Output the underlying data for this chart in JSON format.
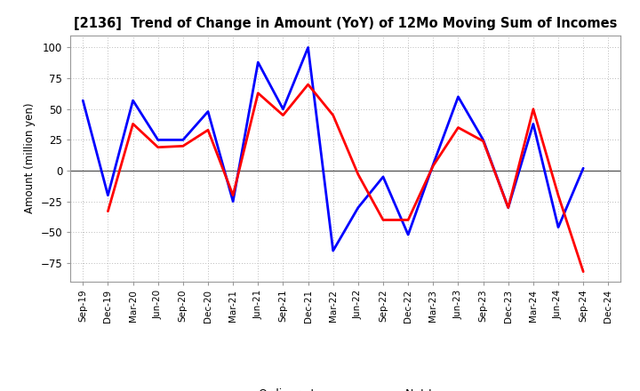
{
  "title": "[2136]  Trend of Change in Amount (YoY) of 12Mo Moving Sum of Incomes",
  "ylabel": "Amount (million yen)",
  "x_labels": [
    "Sep-19",
    "Dec-19",
    "Mar-20",
    "Jun-20",
    "Sep-20",
    "Dec-20",
    "Mar-21",
    "Jun-21",
    "Sep-21",
    "Dec-21",
    "Mar-22",
    "Jun-22",
    "Sep-22",
    "Dec-22",
    "Mar-23",
    "Jun-23",
    "Sep-23",
    "Dec-23",
    "Mar-24",
    "Jun-24",
    "Sep-24",
    "Dec-24"
  ],
  "ordinary_income": [
    57,
    -20,
    57,
    25,
    25,
    48,
    -25,
    88,
    50,
    100,
    -65,
    -30,
    -5,
    -52,
    5,
    60,
    25,
    -30,
    38,
    -46,
    2,
    null
  ],
  "net_income": [
    null,
    -33,
    38,
    19,
    20,
    33,
    -20,
    63,
    45,
    70,
    45,
    -3,
    -40,
    -40,
    4,
    35,
    24,
    -30,
    50,
    -20,
    -82,
    null
  ],
  "ordinary_color": "#0000ff",
  "net_color": "#ff0000",
  "ylim": [
    -90,
    110
  ],
  "yticks": [
    -75,
    -50,
    -25,
    0,
    25,
    50,
    75,
    100
  ],
  "background_color": "#ffffff",
  "grid_color": "#bbbbbb"
}
